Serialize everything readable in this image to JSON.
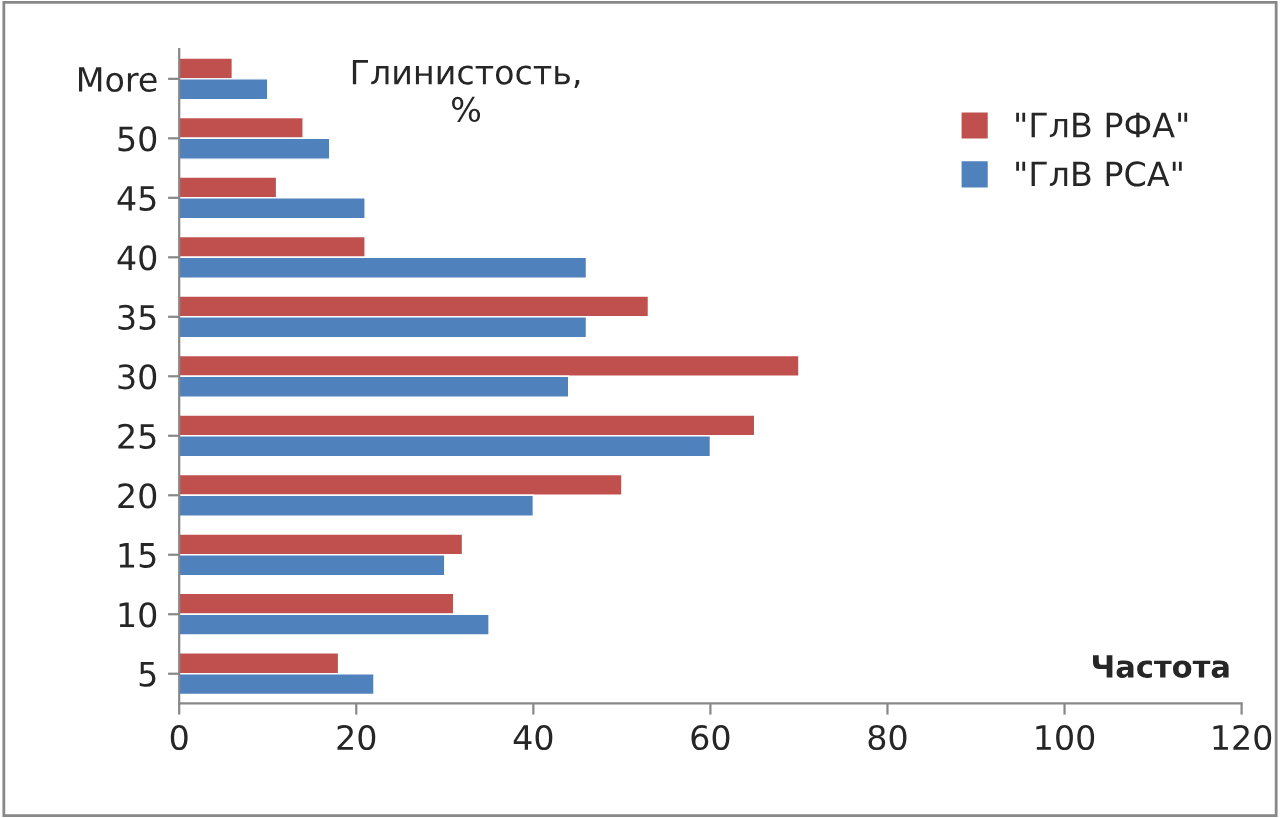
{
  "chart_data": {
    "type": "bar",
    "orientation": "horizontal",
    "title": "Глинистость,\n%",
    "xlabel": "Частота",
    "categories": [
      "More",
      "50",
      "45",
      "40",
      "35",
      "30",
      "25",
      "20",
      "15",
      "10",
      "5"
    ],
    "series": [
      {
        "name": "\"ГлВ РФА\"",
        "color": "#c0504d",
        "values": [
          6,
          14,
          11,
          21,
          53,
          70,
          65,
          50,
          32,
          31,
          18
        ]
      },
      {
        "name": "\"ГлВ РСА\"",
        "color": "#4f81bd",
        "values": [
          10,
          17,
          21,
          46,
          46,
          44,
          60,
          40,
          30,
          35,
          22
        ]
      }
    ],
    "xlim": [
      0,
      120
    ],
    "xticks": [
      0,
      20,
      40,
      60,
      80,
      100,
      120
    ],
    "grid": false,
    "legend": "top right"
  }
}
